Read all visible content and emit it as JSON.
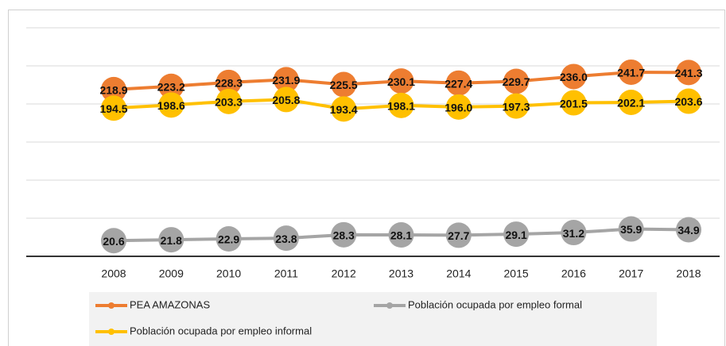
{
  "chart_data": {
    "type": "line",
    "categories": [
      "2008",
      "2009",
      "2010",
      "2011",
      "2012",
      "2013",
      "2014",
      "2015",
      "2016",
      "2017",
      "2018"
    ],
    "series": [
      {
        "name": "PEA AMAZONAS",
        "color": "#ed7d31",
        "values": [
          218.9,
          223.2,
          228.3,
          231.9,
          225.5,
          230.1,
          227.4,
          229.7,
          236.0,
          241.7,
          241.3
        ],
        "value_labels": [
          "218.9",
          "223.2",
          "228.3",
          "231.9",
          "225.5",
          "230.1",
          "227.4",
          "229.7",
          "236.0",
          "241.7",
          "241.3"
        ]
      },
      {
        "name": "Población ocupada por empleo formal",
        "color": "#a5a5a5",
        "values": [
          20.6,
          21.8,
          22.9,
          23.8,
          28.3,
          28.1,
          27.7,
          29.1,
          31.2,
          35.9,
          34.9
        ],
        "value_labels": [
          "20.6",
          "21.8",
          "22.9",
          "23.8",
          "28.3",
          "28.1",
          "27.7",
          "29.1",
          "31.2",
          "35.9",
          "34.9"
        ]
      },
      {
        "name": "Población ocupada por empleo informal",
        "color": "#ffc000",
        "values": [
          194.5,
          198.6,
          203.3,
          205.8,
          193.4,
          198.1,
          196.0,
          197.3,
          201.5,
          202.1,
          203.6
        ],
        "value_labels": [
          "194.5",
          "198.6",
          "203.3",
          "205.8",
          "193.4",
          "198.1",
          "196.0",
          "197.3",
          "201.5",
          "202.1",
          "203.6"
        ]
      }
    ],
    "ylim": [
      0,
      300
    ],
    "yticks": [
      0,
      50,
      100,
      150,
      200,
      250,
      300
    ],
    "grid": true
  }
}
